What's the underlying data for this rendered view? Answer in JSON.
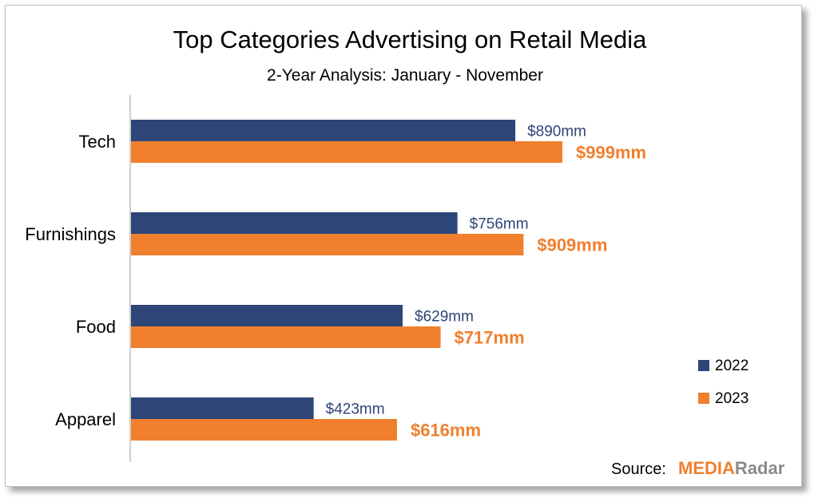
{
  "colors": {
    "series_2022": "#2e4577",
    "series_2023": "#f07f2e",
    "axis": "#bfbfbf",
    "logo_media": "#f07f2e",
    "logo_radar": "#8a8a8a"
  },
  "chart_data": {
    "type": "bar",
    "orientation": "horizontal",
    "title": "Top Categories Advertising on Retail Media",
    "subtitle": "2-Year Analysis: January - November",
    "categories": [
      "Tech",
      "Furnishings",
      "Food",
      "Apparel"
    ],
    "series": [
      {
        "name": "2022",
        "values": [
          890,
          756,
          629,
          423
        ],
        "labels": [
          "$890mm",
          "$756mm",
          "$629mm",
          "$423mm"
        ]
      },
      {
        "name": "2023",
        "values": [
          999,
          909,
          717,
          616
        ],
        "labels": [
          "$999mm",
          "$909mm",
          "$717mm",
          "$616mm"
        ]
      }
    ],
    "xlim": [
      0,
      1480
    ],
    "grid": false,
    "legend_position": "right"
  },
  "source": {
    "label": "Source:",
    "logo_part1": "MEDIA",
    "logo_part2": "Radar"
  }
}
